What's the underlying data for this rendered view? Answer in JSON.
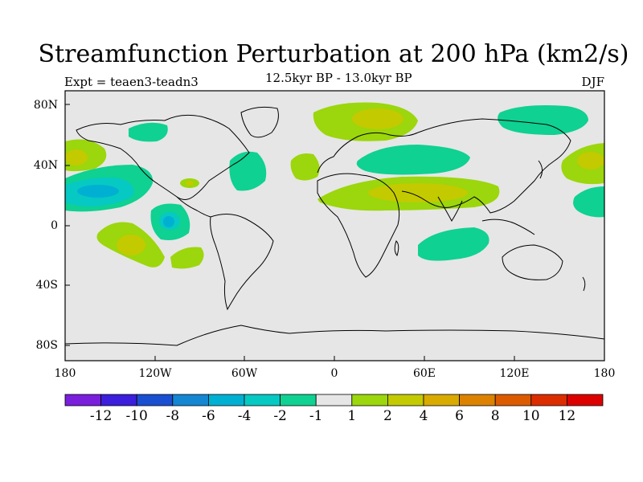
{
  "title": "Streamfunction Perturbation at 200 hPa (km2/s)",
  "left_label": "Expt = teaen3-teadn3",
  "center_label": "12.5kyr BP - 13.0kyr BP",
  "right_label": "DJF",
  "lat_labels": [
    "80N",
    "40N",
    "0",
    "40S",
    "80S"
  ],
  "lon_labels": [
    "180",
    "120W",
    "60W",
    "0",
    "60E",
    "120E",
    "180"
  ],
  "colorbar": {
    "labels": [
      "-12",
      "-10",
      "-8",
      "-6",
      "-4",
      "-2",
      "-1",
      "1",
      "2",
      "4",
      "6",
      "8",
      "10",
      "12"
    ],
    "colors": [
      "#7a1fdc",
      "#3b1fdc",
      "#1b4fd2",
      "#1486d2",
      "#00b0d2",
      "#06c9c3",
      "#0fd191",
      "#e6e6e6",
      "#9cd60c",
      "#c3ca00",
      "#d9aa00",
      "#dc8200",
      "#dc5a00",
      "#dc2d00",
      "#dc0000"
    ]
  },
  "colors": {
    "ocean_background": "#e6e6e6",
    "coast": "#000000"
  }
}
